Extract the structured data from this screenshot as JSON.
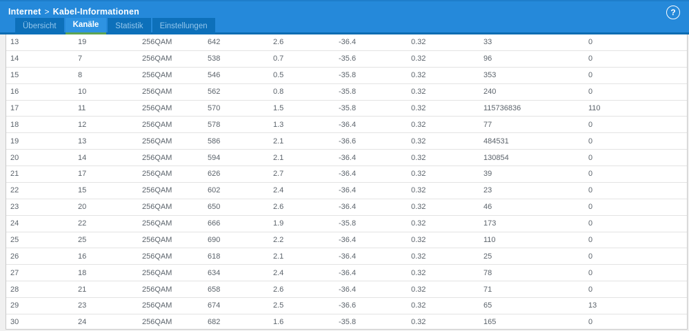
{
  "colors": {
    "header_blue": "#2589da",
    "header_top_edge": "#1e7ecb",
    "header_bottom_strip": "#0d6cb2",
    "tab_inactive_bg": "#0d70ba",
    "tab_inactive_text": "#93c6ec",
    "tab_active_bg": "#2e93e2",
    "tab_active_underline": "#5da452",
    "table_text": "#5b636b"
  },
  "header": {
    "breadcrumb": {
      "section": "Internet",
      "separator": ">",
      "page": "Kabel-Informationen"
    },
    "help_label": "?",
    "tabs": [
      {
        "label": "Übersicht",
        "active": false
      },
      {
        "label": "Kanäle",
        "active": true
      },
      {
        "label": "Statistik",
        "active": false
      },
      {
        "label": "Einstellungen",
        "active": false
      }
    ]
  },
  "table": {
    "rows": [
      [
        "13",
        "19",
        "256QAM",
        "642",
        "2.6",
        "-36.4",
        "0.32",
        "33",
        "0"
      ],
      [
        "14",
        "7",
        "256QAM",
        "538",
        "0.7",
        "-35.6",
        "0.32",
        "96",
        "0"
      ],
      [
        "15",
        "8",
        "256QAM",
        "546",
        "0.5",
        "-35.8",
        "0.32",
        "353",
        "0"
      ],
      [
        "16",
        "10",
        "256QAM",
        "562",
        "0.8",
        "-35.8",
        "0.32",
        "240",
        "0"
      ],
      [
        "17",
        "11",
        "256QAM",
        "570",
        "1.5",
        "-35.8",
        "0.32",
        "115736836",
        "110"
      ],
      [
        "18",
        "12",
        "256QAM",
        "578",
        "1.3",
        "-36.4",
        "0.32",
        "77",
        "0"
      ],
      [
        "19",
        "13",
        "256QAM",
        "586",
        "2.1",
        "-36.6",
        "0.32",
        "484531",
        "0"
      ],
      [
        "20",
        "14",
        "256QAM",
        "594",
        "2.1",
        "-36.4",
        "0.32",
        "130854",
        "0"
      ],
      [
        "21",
        "17",
        "256QAM",
        "626",
        "2.7",
        "-36.4",
        "0.32",
        "39",
        "0"
      ],
      [
        "22",
        "15",
        "256QAM",
        "602",
        "2.4",
        "-36.4",
        "0.32",
        "23",
        "0"
      ],
      [
        "23",
        "20",
        "256QAM",
        "650",
        "2.6",
        "-36.4",
        "0.32",
        "46",
        "0"
      ],
      [
        "24",
        "22",
        "256QAM",
        "666",
        "1.9",
        "-35.8",
        "0.32",
        "173",
        "0"
      ],
      [
        "25",
        "25",
        "256QAM",
        "690",
        "2.2",
        "-36.4",
        "0.32",
        "110",
        "0"
      ],
      [
        "26",
        "16",
        "256QAM",
        "618",
        "2.1",
        "-36.4",
        "0.32",
        "25",
        "0"
      ],
      [
        "27",
        "18",
        "256QAM",
        "634",
        "2.4",
        "-36.4",
        "0.32",
        "78",
        "0"
      ],
      [
        "28",
        "21",
        "256QAM",
        "658",
        "2.6",
        "-36.4",
        "0.32",
        "71",
        "0"
      ],
      [
        "29",
        "23",
        "256QAM",
        "674",
        "2.5",
        "-36.6",
        "0.32",
        "65",
        "13"
      ],
      [
        "30",
        "24",
        "256QAM",
        "682",
        "1.6",
        "-35.8",
        "0.32",
        "165",
        "0"
      ]
    ]
  }
}
